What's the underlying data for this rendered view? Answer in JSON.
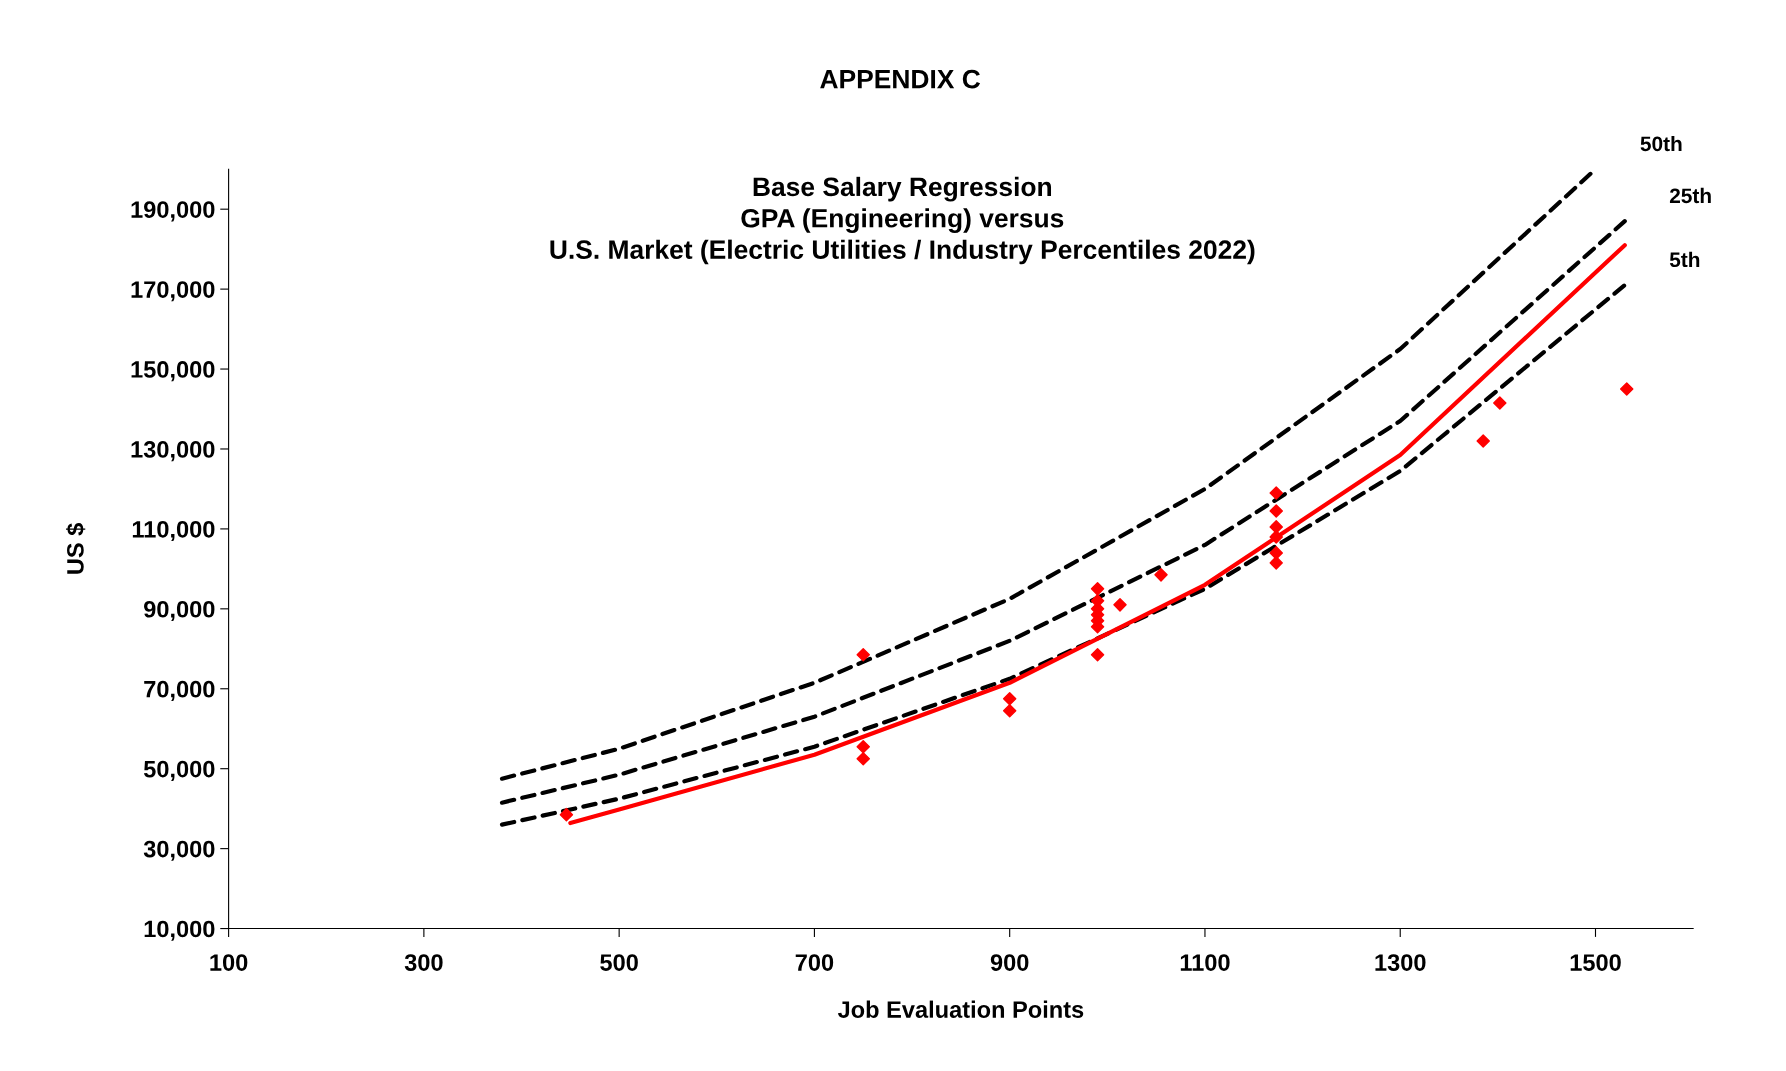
{
  "chart_data": {
    "type": "scatter",
    "title": "APPENDIX C",
    "subtitle": "Base Salary Regression\nGPA (Engineering) versus\nU.S. Market (Electric Utilities / Industry Percentiles 2022)",
    "xlabel": "Job Evaluation Points",
    "ylabel": "US $",
    "xlim": [
      100,
      1600
    ],
    "xticks": [
      100,
      300,
      500,
      700,
      900,
      1100,
      1300,
      1500
    ],
    "ylim": [
      10000,
      200000
    ],
    "yticks": [
      {
        "value": 10000,
        "label": "10,000"
      },
      {
        "value": 30000,
        "label": "30,000"
      },
      {
        "value": 50000,
        "label": "50,000"
      },
      {
        "value": 70000,
        "label": "70,000"
      },
      {
        "value": 90000,
        "label": "90,000"
      },
      {
        "value": 110000,
        "label": "110,000"
      },
      {
        "value": 130000,
        "label": "130,000"
      },
      {
        "value": 150000,
        "label": "150,000"
      },
      {
        "value": 170000,
        "label": "170,000"
      },
      {
        "value": 190000,
        "label": "190,000"
      }
    ],
    "grid": false,
    "series": [
      {
        "type": "line",
        "name": "50th",
        "color": "#000000",
        "line_style": "dashed",
        "x": [
          380,
          500,
          700,
          900,
          1100,
          1300,
          1500
        ],
        "values": [
          47500,
          55000,
          71500,
          92500,
          120000,
          155000,
          200000
        ]
      },
      {
        "type": "line",
        "name": "25th",
        "color": "#000000",
        "line_style": "dashed",
        "x": [
          380,
          500,
          700,
          900,
          1100,
          1300,
          1530
        ],
        "values": [
          41500,
          48500,
          63000,
          82000,
          106000,
          137000,
          187000
        ]
      },
      {
        "type": "line",
        "name": "5th",
        "color": "#000000",
        "line_style": "dashed",
        "x": [
          380,
          500,
          700,
          900,
          1100,
          1300,
          1530
        ],
        "values": [
          36000,
          42500,
          55500,
          72500,
          95000,
          124500,
          171000
        ]
      },
      {
        "type": "line",
        "color": "#ff0000",
        "line_style": "solid",
        "x": [
          450,
          500,
          700,
          900,
          1100,
          1300,
          1530
        ],
        "values": [
          36400,
          39800,
          53500,
          71500,
          96000,
          128500,
          181000
        ]
      },
      {
        "color": "#ff0000",
        "marker": "diamond",
        "x": [
          446,
          750,
          750,
          750,
          900,
          900,
          990,
          990,
          990,
          990,
          990,
          990,
          990,
          1013,
          1055,
          1173,
          1173,
          1173,
          1173,
          1173,
          1173,
          1385,
          1402,
          1532
        ],
        "values": [
          38500,
          78500,
          55500,
          52500,
          67500,
          64500,
          95000,
          92000,
          90000,
          88500,
          87000,
          85500,
          78500,
          91000,
          98500,
          119000,
          114500,
          110500,
          108000,
          104000,
          101500,
          132000,
          141500,
          145000
        ]
      }
    ]
  }
}
